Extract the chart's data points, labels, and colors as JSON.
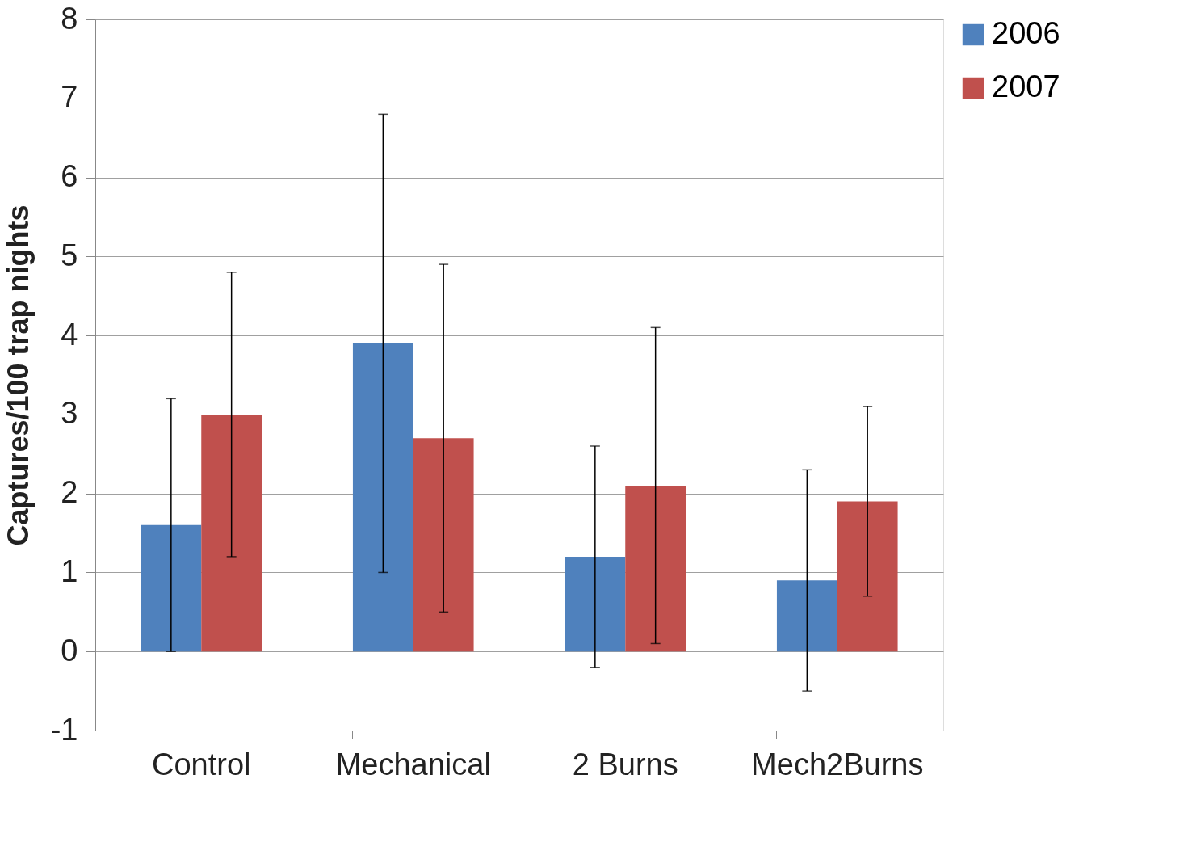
{
  "chart_data": {
    "type": "bar",
    "ylabel": "Captures/100 trap nights",
    "categories": [
      "Control",
      "Mechanical",
      "2 Burns",
      "Mech2Burns"
    ],
    "series": [
      {
        "name": "2006",
        "color": "#4f81bd",
        "values": [
          1.6,
          3.9,
          1.2,
          0.9
        ],
        "errors": [
          [
            0,
            3.2
          ],
          [
            1.0,
            6.8
          ],
          [
            -0.2,
            2.6
          ],
          [
            -0.5,
            2.3
          ]
        ]
      },
      {
        "name": "2007",
        "color": "#c0504d",
        "values": [
          3.0,
          2.7,
          2.1,
          1.9
        ],
        "errors": [
          [
            1.2,
            4.8
          ],
          [
            0.5,
            4.9
          ],
          [
            0.1,
            4.1
          ],
          [
            0.7,
            3.1
          ]
        ]
      }
    ],
    "ylim": [
      -1,
      8
    ],
    "yticks": [
      -1,
      0,
      1,
      2,
      3,
      4,
      5,
      6,
      7,
      8
    ],
    "grid": "y",
    "legend": "right"
  }
}
